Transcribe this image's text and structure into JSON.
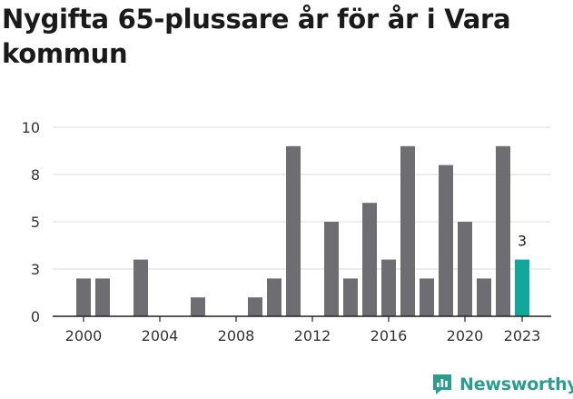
{
  "title": "Nygifta 65-plussare år för år i Vara kommun",
  "brand": {
    "name": "Newsworthy",
    "icon": "newsworthy-logo-icon",
    "color": "#2a9d8f"
  },
  "colors": {
    "bar": "#6e6d72",
    "highlight": "#0fa89a",
    "grid": "#dcdcdc",
    "axis": "#222222"
  },
  "chart_data": {
    "type": "bar",
    "title": "Nygifta 65-plussare år för år i Vara kommun",
    "xlabel": "",
    "ylabel": "",
    "x": [
      2000,
      2001,
      2002,
      2003,
      2004,
      2005,
      2006,
      2007,
      2008,
      2009,
      2010,
      2011,
      2012,
      2013,
      2014,
      2015,
      2016,
      2017,
      2018,
      2019,
      2020,
      2021,
      2022,
      2023
    ],
    "values": [
      2,
      2,
      0,
      3,
      0,
      0,
      1,
      0,
      0,
      1,
      2,
      9,
      0,
      5,
      2,
      6,
      3,
      9,
      2,
      8,
      5,
      2,
      9,
      3
    ],
    "highlight_index": 23,
    "highlight_label": "3",
    "ylim": [
      0,
      10
    ],
    "ytick_values": [
      0,
      2.5,
      5,
      7.5,
      10
    ],
    "ytick_labels": [
      "0",
      "3",
      "5",
      "8",
      "10"
    ],
    "xtick_labels": [
      "2000",
      "2004",
      "2008",
      "2012",
      "2016",
      "2020",
      "2023"
    ],
    "grid": true,
    "legend": "none"
  }
}
